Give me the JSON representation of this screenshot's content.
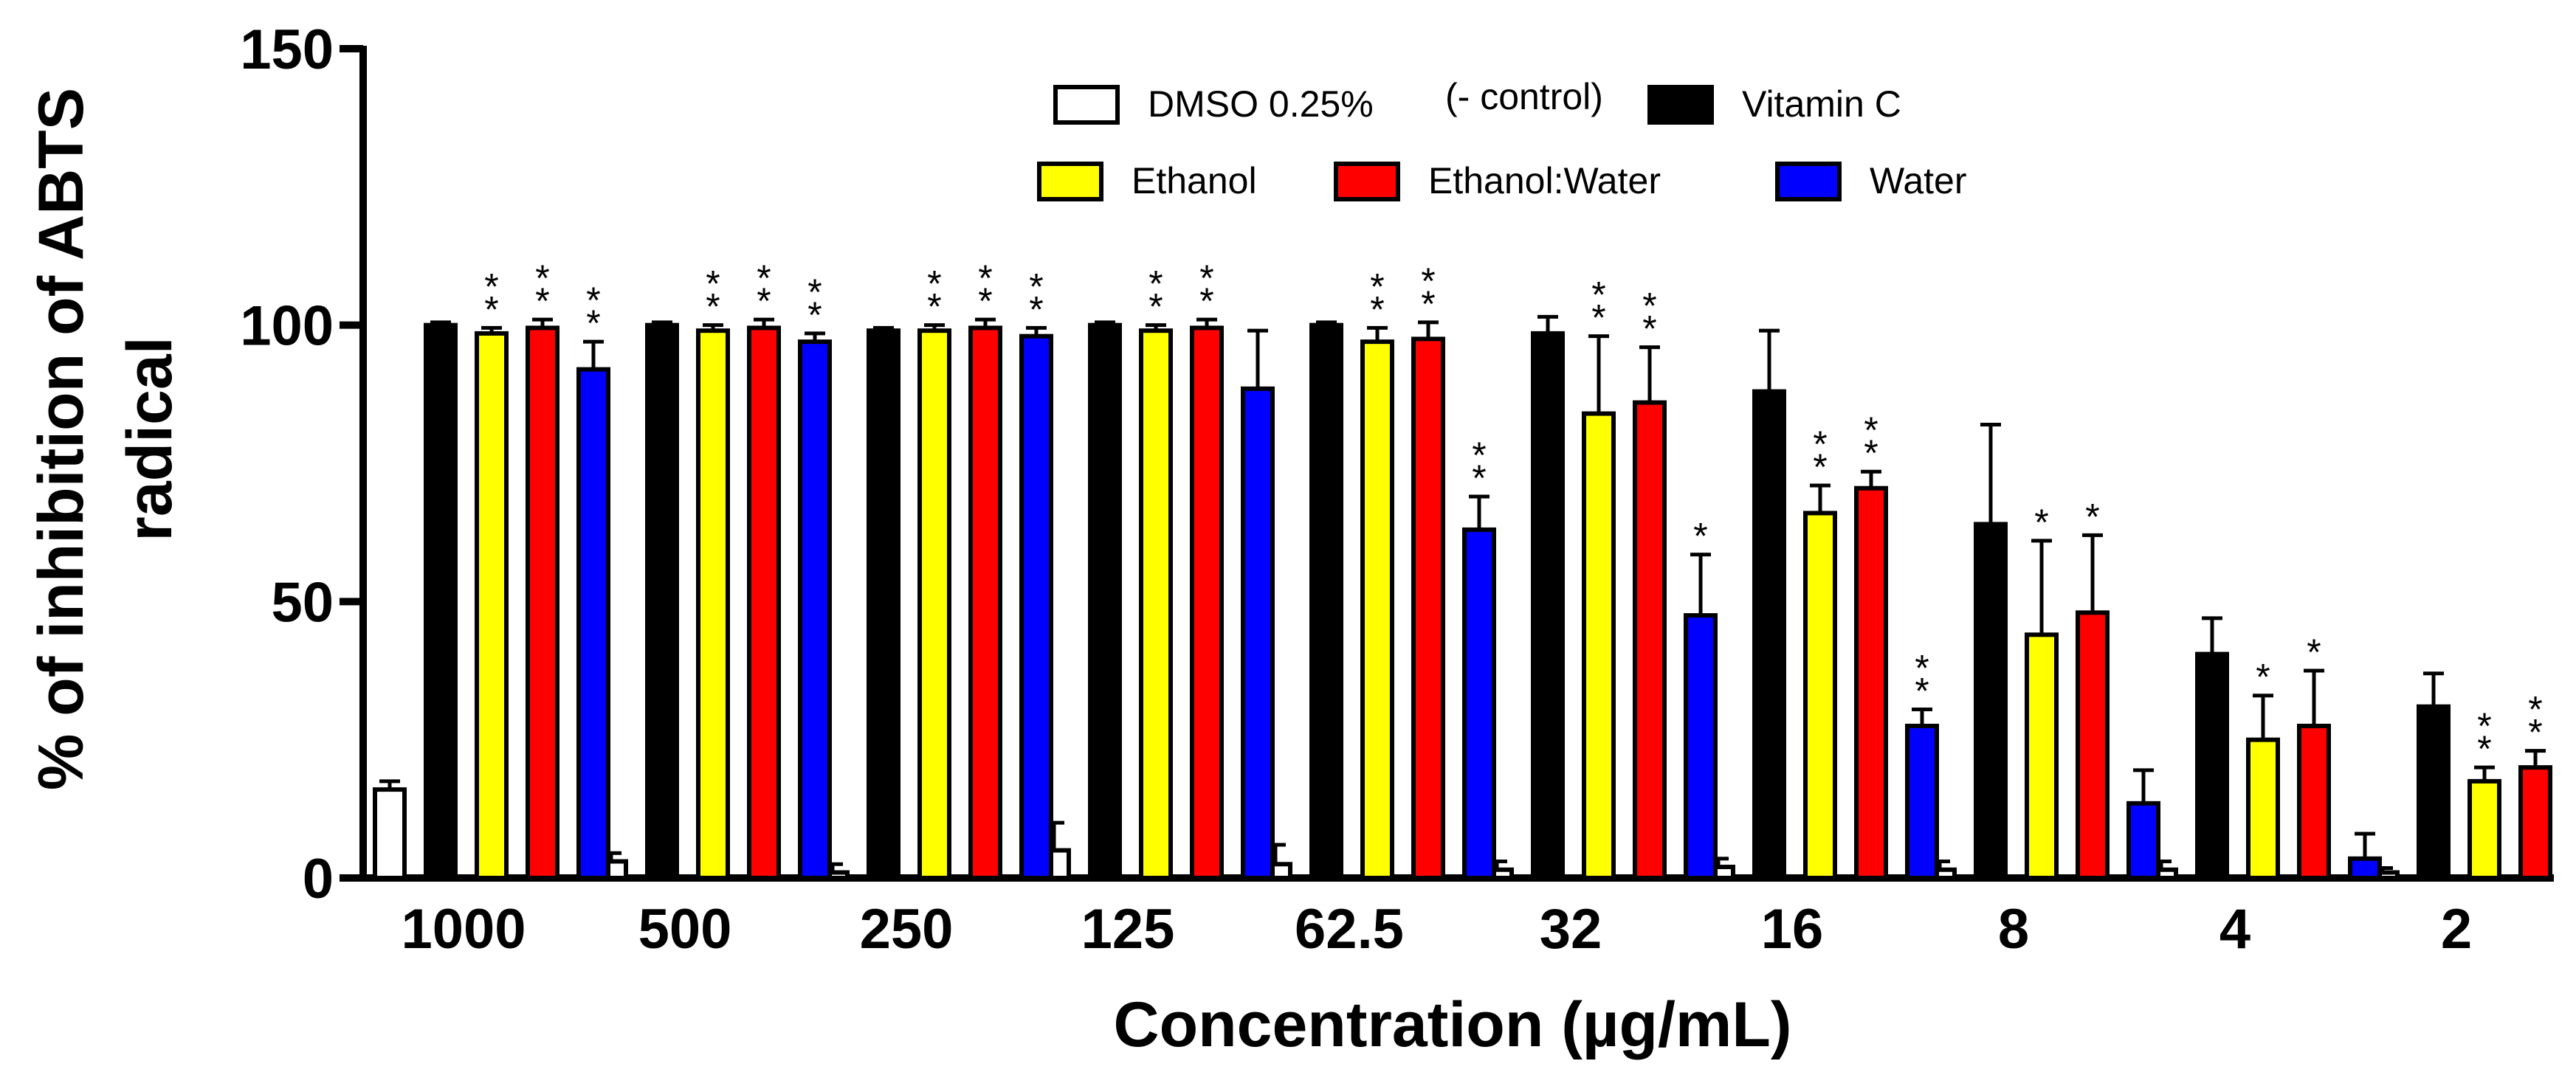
{
  "chart_data": {
    "type": "bar",
    "title": "",
    "xlabel": "Concentration (µg/mL)",
    "ylabel_lines": [
      "% of inhibition of ABTS",
      "radical"
    ],
    "ylim": [
      0,
      150
    ],
    "yticks": [
      0,
      50,
      100,
      150
    ],
    "ytick_labels": [
      "0",
      "50",
      "100",
      "150"
    ],
    "grid": false,
    "legend_position": "top-center",
    "categories": [
      "1000",
      "500",
      "250",
      "125",
      "62.5",
      "32",
      "16",
      "8",
      "4",
      "2"
    ],
    "series": [
      {
        "name": "DMSO 0.25%",
        "name_suffix": "(- control)",
        "color": "#ffffff",
        "values": [
          16,
          3,
          1,
          5,
          2.5,
          1.5,
          2,
          1.5,
          1.5,
          1
        ],
        "errors": [
          1.5,
          1.5,
          1.5,
          5,
          3.5,
          1.5,
          1.5,
          1.5,
          1.5,
          0.8
        ],
        "stars": [
          0,
          0,
          0,
          0,
          0,
          0,
          0,
          0,
          0,
          0
        ]
      },
      {
        "name": "Vitamin C",
        "color": "#000000",
        "values": [
          100,
          100,
          99,
          100,
          100,
          98.5,
          88,
          64,
          40.5,
          31
        ],
        "errors": [
          0.5,
          0.5,
          0.5,
          0.5,
          0.5,
          3,
          11,
          18,
          6.5,
          6
        ],
        "stars": [
          0,
          0,
          0,
          0,
          0,
          0,
          0,
          0,
          0,
          0
        ]
      },
      {
        "name": "Ethanol",
        "color": "#ffff00",
        "values": [
          98.5,
          99,
          99,
          99,
          97,
          84,
          66,
          44,
          25,
          17.5
        ],
        "errors": [
          1,
          1,
          1,
          1,
          2.5,
          14,
          5,
          17,
          8,
          2.5
        ],
        "stars": [
          2,
          2,
          2,
          2,
          2,
          2,
          2,
          1,
          1,
          2
        ]
      },
      {
        "name": "Ethanol:Water",
        "color": "#ff0000",
        "values": [
          99.5,
          99.5,
          99.5,
          99.5,
          97.5,
          86,
          70.5,
          48,
          27.5,
          20
        ],
        "errors": [
          1.5,
          1.5,
          1.5,
          1.5,
          3,
          10,
          3,
          14,
          10,
          3
        ],
        "stars": [
          2,
          2,
          2,
          2,
          2,
          2,
          2,
          1,
          1,
          2
        ]
      },
      {
        "name": "Water",
        "color": "#0000ff",
        "values": [
          92,
          97,
          98,
          88.5,
          63,
          47.5,
          27.5,
          13.5,
          3.5,
          0
        ],
        "errors": [
          5,
          1.5,
          1.5,
          10.5,
          6,
          11,
          3,
          6,
          4.5,
          2
        ],
        "stars": [
          2,
          2,
          2,
          0,
          2,
          1,
          2,
          0,
          0,
          0
        ]
      }
    ],
    "star_symbol": "*"
  }
}
